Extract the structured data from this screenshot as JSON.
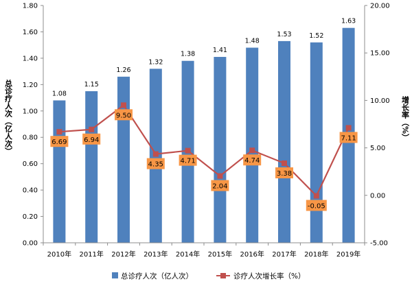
{
  "chart_data": {
    "type": "bar",
    "categories": [
      "2010年",
      "2011年",
      "2012年",
      "2013年",
      "2014年",
      "2015年",
      "2016年",
      "2017年",
      "2018年",
      "2019年"
    ],
    "series": [
      {
        "name": "总诊疗人次（亿人次）",
        "type": "bar",
        "axis": "left",
        "values": [
          1.08,
          1.15,
          1.26,
          1.32,
          1.38,
          1.41,
          1.48,
          1.53,
          1.52,
          1.63
        ],
        "labels": [
          "1.08",
          "1.15",
          "1.26",
          "1.32",
          "1.38",
          "1.41",
          "1.48",
          "1.53",
          "1.52",
          "1.63"
        ],
        "color": "#4f81bd"
      },
      {
        "name": "诊疗人次增长率（%）",
        "type": "line",
        "axis": "right",
        "values": [
          6.69,
          6.94,
          9.5,
          4.35,
          4.71,
          2.04,
          4.74,
          3.38,
          -0.05,
          7.11
        ],
        "labels": [
          "6.69",
          "6.94",
          "9.50",
          "4.35",
          "4.71",
          "2.04",
          "4.74",
          "3.38",
          "-0.05",
          "7.11"
        ],
        "color": "#c0504d",
        "label_box_color": "#f79646"
      }
    ],
    "ylabel": "总诊疗人次（亿人次）",
    "y2label": "增长率（%）",
    "ylim": [
      0,
      1.8
    ],
    "yticks": [
      "0.00",
      "0.20",
      "0.40",
      "0.60",
      "0.80",
      "1.00",
      "1.20",
      "1.40",
      "1.60",
      "1.80"
    ],
    "y2lim": [
      -5,
      20
    ],
    "y2ticks": [
      "-5.00",
      "0.00",
      "5.00",
      "10.00",
      "15.00",
      "20.00"
    ],
    "grid": false,
    "legend_position": "bottom"
  }
}
